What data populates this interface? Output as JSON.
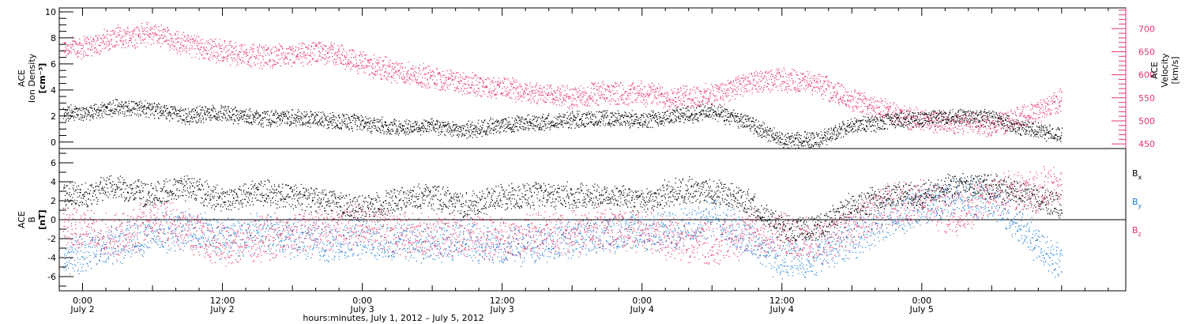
{
  "chart_data": [
    {
      "type": "scatter",
      "panel": "density-velocity",
      "ylabel": [
        "ACE",
        "Ion Density",
        "[cm⁻³]"
      ],
      "ylim": [
        -0.5,
        10.3
      ],
      "yticks": [
        "0",
        "2",
        "4",
        "6",
        "8",
        "10"
      ],
      "right_axis": {
        "label": [
          "ACE",
          "Velocity",
          "[km/s]"
        ],
        "ylim": [
          440,
          745
        ],
        "ticks": [
          "450",
          "500",
          "550",
          "600",
          "650",
          "700"
        ]
      },
      "series": [
        {
          "name": "Density",
          "color": "#000000",
          "axis": "left",
          "x_hours": [
            0,
            3,
            6,
            9,
            12,
            15,
            18,
            21,
            24,
            27,
            30,
            33,
            36,
            39,
            42,
            45,
            48,
            51,
            54,
            57,
            60,
            63,
            66,
            69,
            72,
            75,
            78,
            81,
            84
          ],
          "values": [
            2.2,
            2.7,
            2.5,
            2.0,
            2.2,
            1.8,
            1.9,
            1.7,
            1.4,
            1.1,
            1.2,
            0.9,
            1.3,
            1.5,
            1.7,
            1.8,
            1.7,
            2.0,
            2.3,
            1.5,
            0.1,
            0.2,
            1.2,
            1.6,
            1.8,
            2.0,
            1.8,
            1.0,
            0.5
          ]
        },
        {
          "name": "Velocity",
          "color": "#e8356a",
          "axis": "right",
          "x_hours": [
            0,
            3,
            6,
            9,
            12,
            15,
            18,
            21,
            24,
            27,
            30,
            33,
            36,
            39,
            42,
            45,
            48,
            51,
            54,
            57,
            60,
            63,
            66,
            69,
            72,
            75,
            78,
            81,
            84
          ],
          "values": [
            660,
            680,
            690,
            665,
            650,
            640,
            640,
            650,
            625,
            605,
            595,
            580,
            570,
            560,
            550,
            560,
            560,
            550,
            555,
            580,
            590,
            580,
            545,
            520,
            500,
            495,
            490,
            510,
            545
          ]
        }
      ]
    },
    {
      "type": "scatter",
      "panel": "magnetic-field",
      "ylabel": [
        "ACE",
        "B",
        "[nT]"
      ],
      "ylim": [
        -7.5,
        7.5
      ],
      "yticks": [
        "-6",
        "-4",
        "-2",
        "0",
        "2",
        "4",
        "6"
      ],
      "series": [
        {
          "name": "Bx",
          "color": "#000000",
          "x_hours": [
            0,
            3,
            6,
            9,
            12,
            15,
            18,
            21,
            24,
            27,
            30,
            33,
            36,
            39,
            42,
            45,
            48,
            51,
            54,
            57,
            60,
            63,
            66,
            69,
            72,
            75,
            78,
            81,
            84
          ],
          "values": [
            2.5,
            3.5,
            2.5,
            3.5,
            2.0,
            3.0,
            2.5,
            2.0,
            1.0,
            2.0,
            2.5,
            1.5,
            2.5,
            2.5,
            2.5,
            2.5,
            2.0,
            3.0,
            3.0,
            2.0,
            -1.0,
            -1.0,
            1.5,
            2.5,
            2.5,
            3.5,
            3.5,
            2.5,
            1.5
          ]
        },
        {
          "name": "By",
          "color": "#1f7ed6",
          "x_hours": [
            0,
            3,
            6,
            9,
            12,
            15,
            18,
            21,
            24,
            27,
            30,
            33,
            36,
            39,
            42,
            45,
            48,
            51,
            54,
            57,
            60,
            63,
            66,
            69,
            72,
            75,
            78,
            81,
            84
          ],
          "values": [
            -3.5,
            -2.5,
            -1.5,
            -1.0,
            -2.0,
            -1.5,
            -2.0,
            -2.5,
            -2.0,
            -2.5,
            -2.5,
            -2.0,
            -3.0,
            -2.5,
            -2.0,
            -1.5,
            -1.5,
            -1.0,
            0.5,
            -2.0,
            -4.5,
            -4.0,
            -2.0,
            0.0,
            1.5,
            2.5,
            2.0,
            -1.5,
            -4.5
          ]
        },
        {
          "name": "Bz",
          "color": "#e8356a",
          "x_hours": [
            0,
            3,
            6,
            9,
            12,
            15,
            18,
            21,
            24,
            27,
            30,
            33,
            36,
            39,
            42,
            45,
            48,
            51,
            54,
            57,
            60,
            63,
            66,
            69,
            72,
            75,
            78,
            81,
            84
          ],
          "values": [
            -1.0,
            -2.0,
            0.0,
            -1.0,
            -3.0,
            -2.0,
            -1.5,
            -1.0,
            -0.5,
            -1.5,
            -2.0,
            -1.5,
            -2.0,
            -1.5,
            -1.5,
            -1.0,
            -1.0,
            -2.0,
            -2.5,
            -1.5,
            -1.5,
            -2.5,
            -1.0,
            1.5,
            2.0,
            0.5,
            2.5,
            3.0,
            3.5
          ]
        }
      ],
      "legend": [
        {
          "base": "B",
          "sub": "x",
          "color": "#000000"
        },
        {
          "base": "B",
          "sub": "y",
          "color": "#1f7ed6"
        },
        {
          "base": "B",
          "sub": "z",
          "color": "#e8356a"
        }
      ]
    }
  ],
  "x_axis": {
    "xlim_hours": [
      -2.0,
      89.5
    ],
    "ticks": [
      {
        "hours": 0,
        "time": "0:00",
        "day": "July 2"
      },
      {
        "hours": 12,
        "time": "12:00",
        "day": "July 2"
      },
      {
        "hours": 24,
        "time": "0:00",
        "day": "July 3"
      },
      {
        "hours": 36,
        "time": "12:00",
        "day": "July 3"
      },
      {
        "hours": 48,
        "time": "0:00",
        "day": "July 4"
      },
      {
        "hours": 60,
        "time": "12:00",
        "day": "July 4"
      },
      {
        "hours": 72,
        "time": "0:00",
        "day": "July 5"
      }
    ],
    "label": "hours:minutes, July  1, 2012 – July  5, 2012"
  }
}
